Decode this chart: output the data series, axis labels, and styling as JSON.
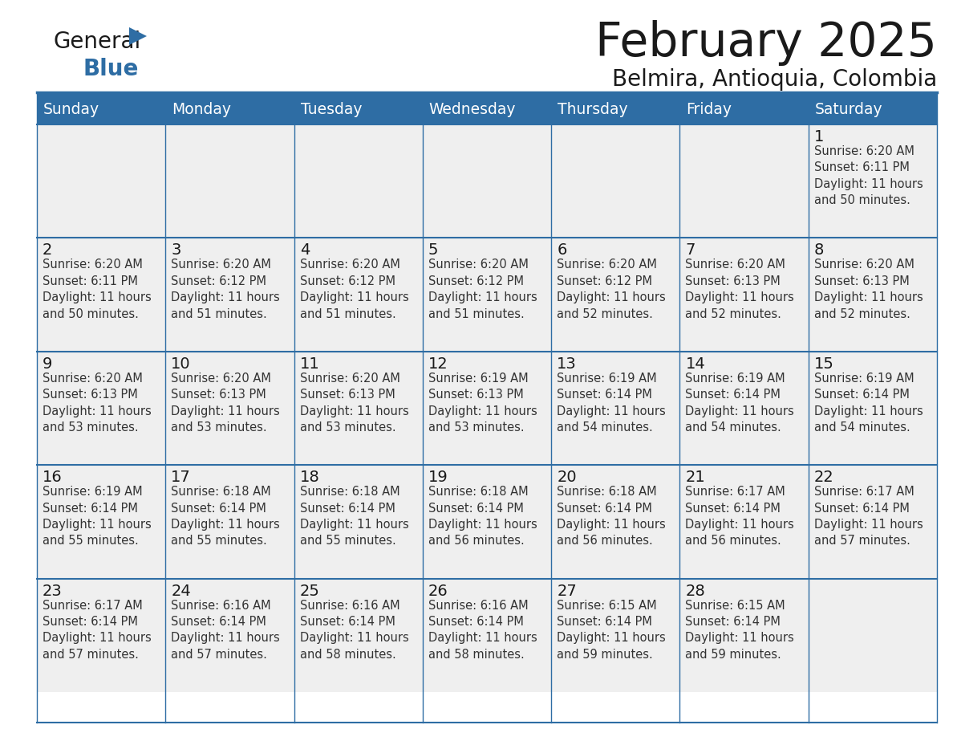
{
  "title": "February 2025",
  "subtitle": "Belmira, Antioquia, Colombia",
  "days_of_week": [
    "Sunday",
    "Monday",
    "Tuesday",
    "Wednesday",
    "Thursday",
    "Friday",
    "Saturday"
  ],
  "header_bg": "#2E6DA4",
  "header_fg": "#FFFFFF",
  "cell_bg": "#EFEFEF",
  "line_color": "#2E6DA4",
  "title_color": "#1a1a1a",
  "day_number_color": "#1a1a1a",
  "text_color": "#333333",
  "logo_general_color": "#1a1a1a",
  "logo_blue_color": "#2E6DA4",
  "logo_triangle_color": "#2E6DA4",
  "calendar_data": [
    [
      null,
      null,
      null,
      null,
      null,
      null,
      {
        "day": 1,
        "sunrise": "6:20 AM",
        "sunset": "6:11 PM",
        "daylight": "11 hours\nand 50 minutes."
      }
    ],
    [
      {
        "day": 2,
        "sunrise": "6:20 AM",
        "sunset": "6:11 PM",
        "daylight": "11 hours\nand 50 minutes."
      },
      {
        "day": 3,
        "sunrise": "6:20 AM",
        "sunset": "6:12 PM",
        "daylight": "11 hours\nand 51 minutes."
      },
      {
        "day": 4,
        "sunrise": "6:20 AM",
        "sunset": "6:12 PM",
        "daylight": "11 hours\nand 51 minutes."
      },
      {
        "day": 5,
        "sunrise": "6:20 AM",
        "sunset": "6:12 PM",
        "daylight": "11 hours\nand 51 minutes."
      },
      {
        "day": 6,
        "sunrise": "6:20 AM",
        "sunset": "6:12 PM",
        "daylight": "11 hours\nand 52 minutes."
      },
      {
        "day": 7,
        "sunrise": "6:20 AM",
        "sunset": "6:13 PM",
        "daylight": "11 hours\nand 52 minutes."
      },
      {
        "day": 8,
        "sunrise": "6:20 AM",
        "sunset": "6:13 PM",
        "daylight": "11 hours\nand 52 minutes."
      }
    ],
    [
      {
        "day": 9,
        "sunrise": "6:20 AM",
        "sunset": "6:13 PM",
        "daylight": "11 hours\nand 53 minutes."
      },
      {
        "day": 10,
        "sunrise": "6:20 AM",
        "sunset": "6:13 PM",
        "daylight": "11 hours\nand 53 minutes."
      },
      {
        "day": 11,
        "sunrise": "6:20 AM",
        "sunset": "6:13 PM",
        "daylight": "11 hours\nand 53 minutes."
      },
      {
        "day": 12,
        "sunrise": "6:19 AM",
        "sunset": "6:13 PM",
        "daylight": "11 hours\nand 53 minutes."
      },
      {
        "day": 13,
        "sunrise": "6:19 AM",
        "sunset": "6:14 PM",
        "daylight": "11 hours\nand 54 minutes."
      },
      {
        "day": 14,
        "sunrise": "6:19 AM",
        "sunset": "6:14 PM",
        "daylight": "11 hours\nand 54 minutes."
      },
      {
        "day": 15,
        "sunrise": "6:19 AM",
        "sunset": "6:14 PM",
        "daylight": "11 hours\nand 54 minutes."
      }
    ],
    [
      {
        "day": 16,
        "sunrise": "6:19 AM",
        "sunset": "6:14 PM",
        "daylight": "11 hours\nand 55 minutes."
      },
      {
        "day": 17,
        "sunrise": "6:18 AM",
        "sunset": "6:14 PM",
        "daylight": "11 hours\nand 55 minutes."
      },
      {
        "day": 18,
        "sunrise": "6:18 AM",
        "sunset": "6:14 PM",
        "daylight": "11 hours\nand 55 minutes."
      },
      {
        "day": 19,
        "sunrise": "6:18 AM",
        "sunset": "6:14 PM",
        "daylight": "11 hours\nand 56 minutes."
      },
      {
        "day": 20,
        "sunrise": "6:18 AM",
        "sunset": "6:14 PM",
        "daylight": "11 hours\nand 56 minutes."
      },
      {
        "day": 21,
        "sunrise": "6:17 AM",
        "sunset": "6:14 PM",
        "daylight": "11 hours\nand 56 minutes."
      },
      {
        "day": 22,
        "sunrise": "6:17 AM",
        "sunset": "6:14 PM",
        "daylight": "11 hours\nand 57 minutes."
      }
    ],
    [
      {
        "day": 23,
        "sunrise": "6:17 AM",
        "sunset": "6:14 PM",
        "daylight": "11 hours\nand 57 minutes."
      },
      {
        "day": 24,
        "sunrise": "6:16 AM",
        "sunset": "6:14 PM",
        "daylight": "11 hours\nand 57 minutes."
      },
      {
        "day": 25,
        "sunrise": "6:16 AM",
        "sunset": "6:14 PM",
        "daylight": "11 hours\nand 58 minutes."
      },
      {
        "day": 26,
        "sunrise": "6:16 AM",
        "sunset": "6:14 PM",
        "daylight": "11 hours\nand 58 minutes."
      },
      {
        "day": 27,
        "sunrise": "6:15 AM",
        "sunset": "6:14 PM",
        "daylight": "11 hours\nand 59 minutes."
      },
      {
        "day": 28,
        "sunrise": "6:15 AM",
        "sunset": "6:14 PM",
        "daylight": "11 hours\nand 59 minutes."
      },
      null
    ]
  ]
}
